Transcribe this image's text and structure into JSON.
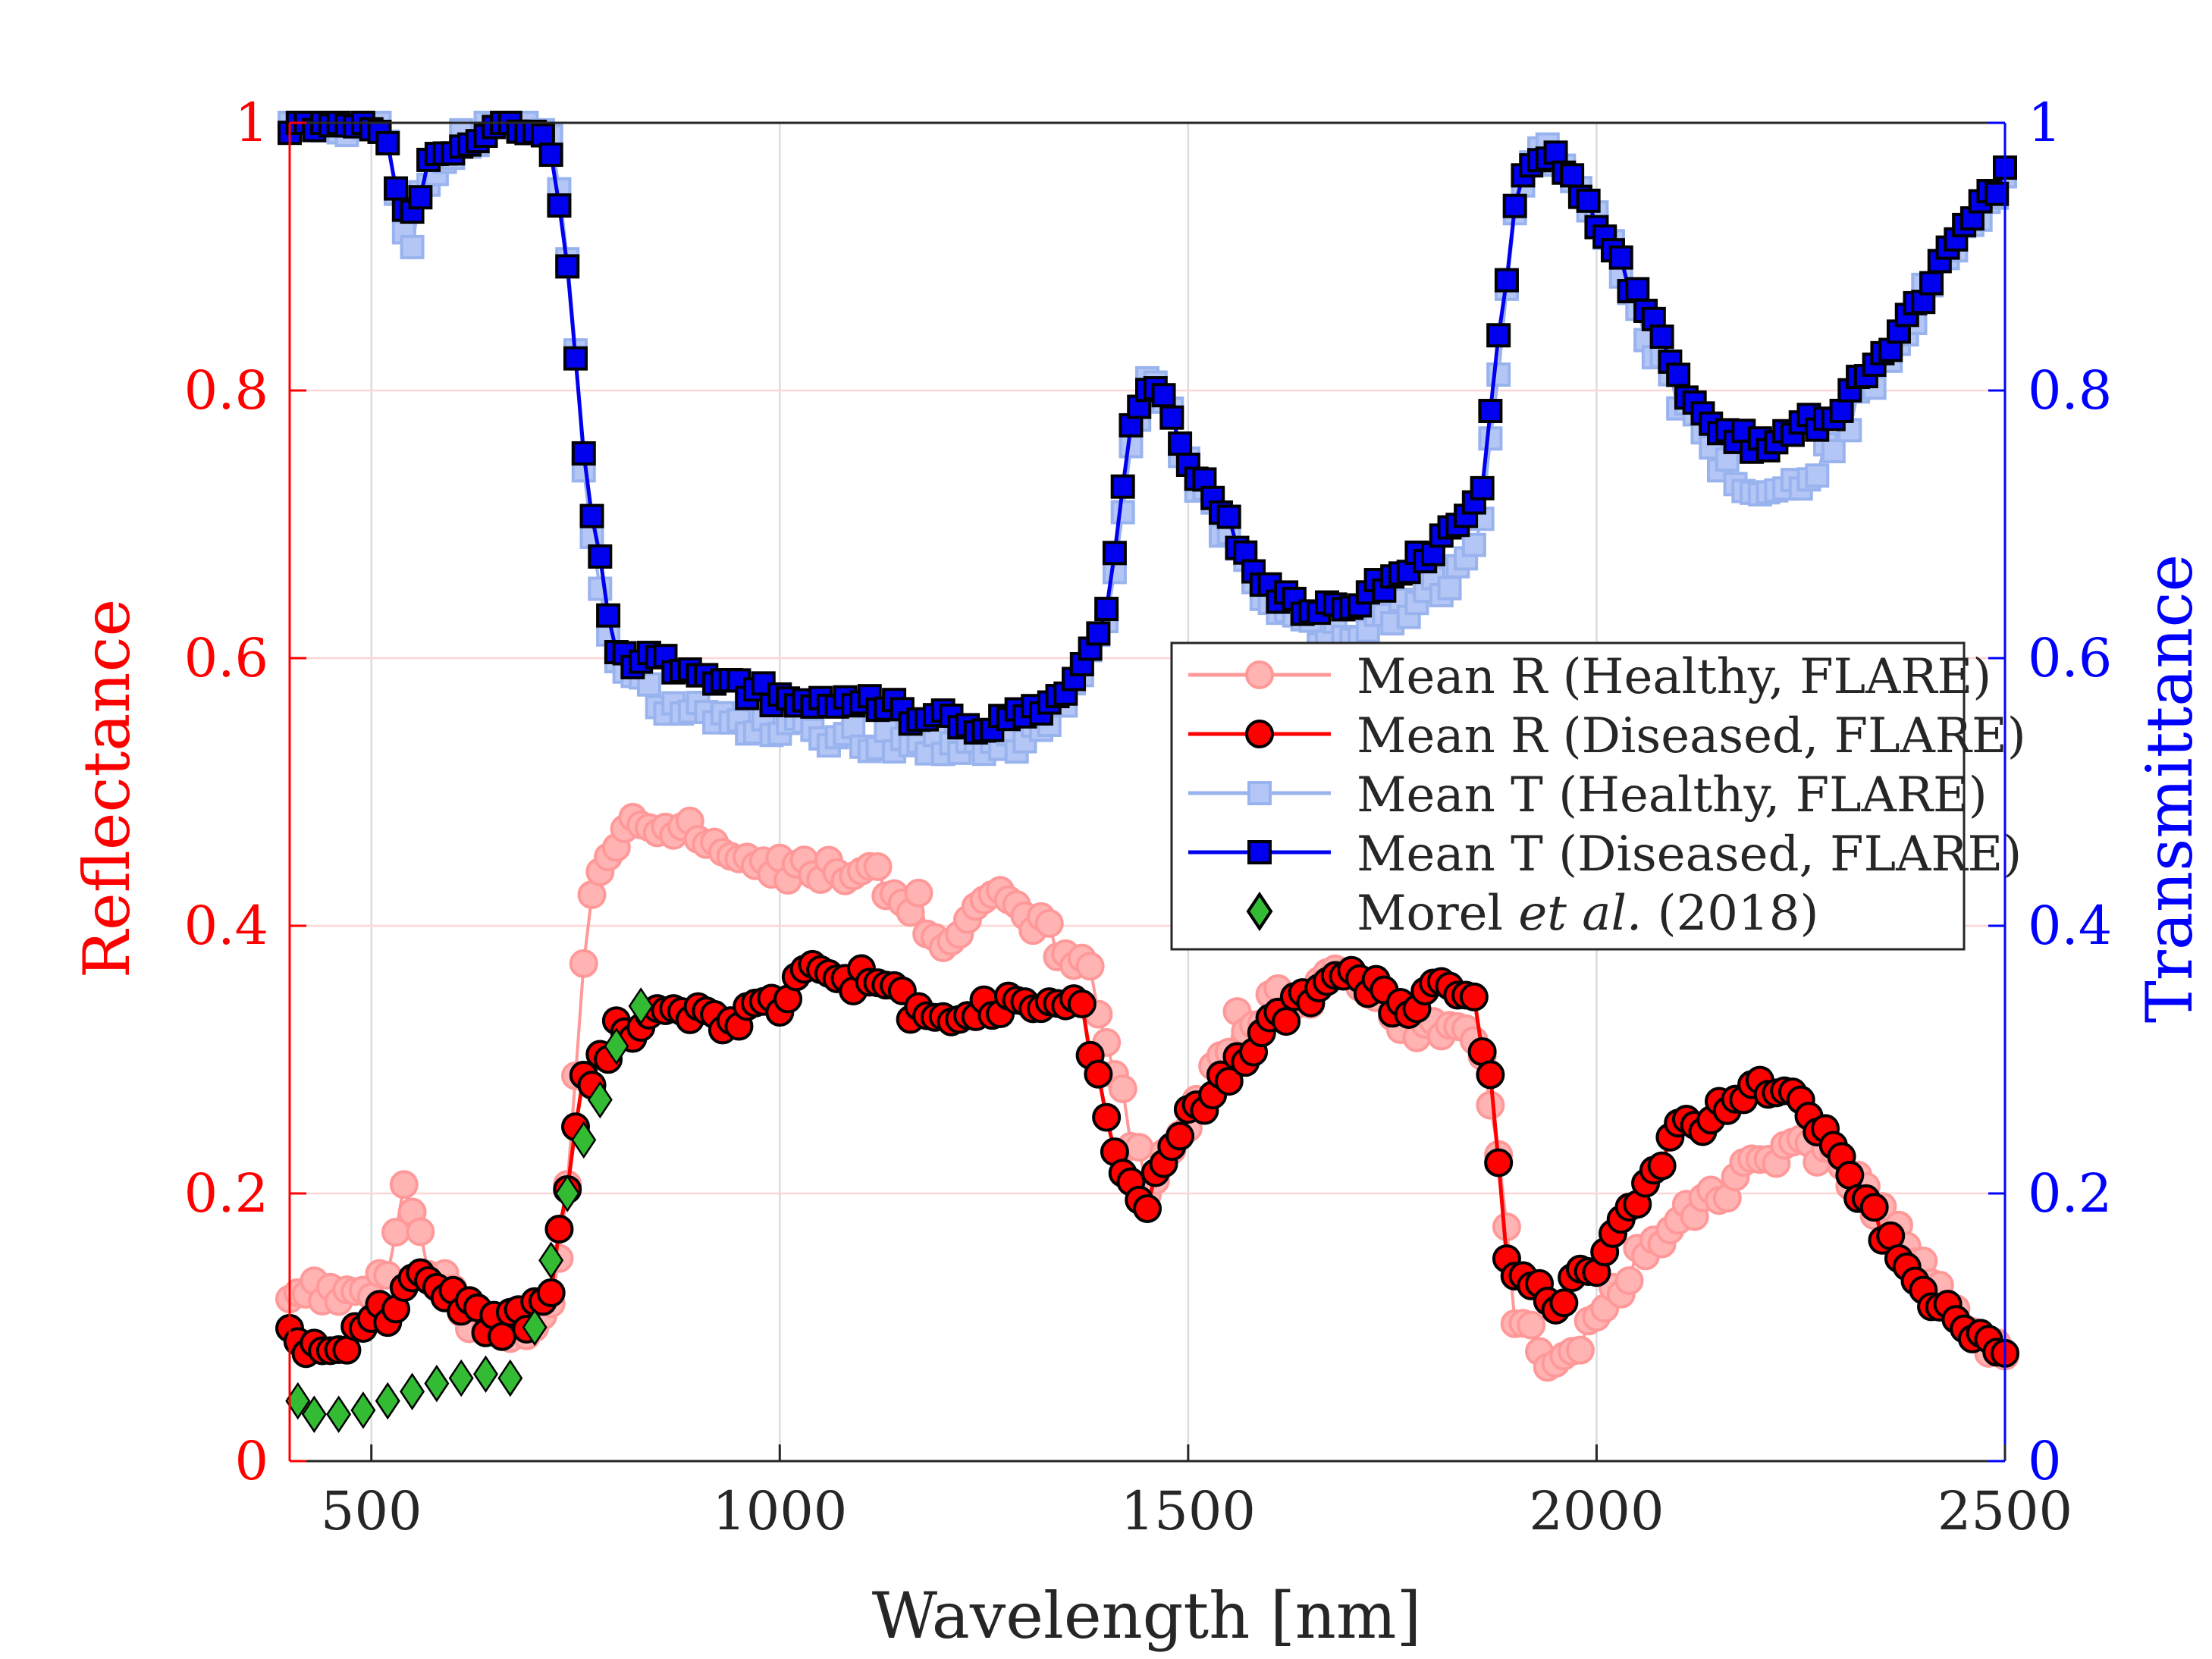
{
  "chart_data": {
    "type": "line",
    "xlabel": "Wavelength [nm]",
    "ylabel_left": "Reflectance",
    "ylabel_right": "Transmittance",
    "xlim": [
      400,
      2500
    ],
    "ylim_left": [
      0,
      1
    ],
    "ylim_right": [
      0,
      1
    ],
    "x_ticks": [
      500,
      1000,
      1500,
      2000,
      2500
    ],
    "x_tick_labels": [
      "500",
      "1000",
      "1500",
      "2000",
      "2500"
    ],
    "y_ticks": [
      0,
      0.2,
      0.4,
      0.6,
      0.8,
      1
    ],
    "y_left_tick_labels": [
      "0",
      "0.2",
      "0.4",
      "0.6",
      "0.8",
      "1"
    ],
    "y_right_tick_labels": [
      "0",
      "0.2",
      "0.4",
      "0.6",
      "0.8",
      "1"
    ],
    "grid": true,
    "legend_position": "center-right",
    "colors": {
      "left_axis": "#ff0000",
      "right_axis": "#0000ff",
      "healthy_r": "#ff9999",
      "diseased_r": "#ff0000",
      "healthy_t": "#99b3ee",
      "diseased_t": "#0000ee",
      "morel": "#33bb33"
    },
    "series": [
      {
        "name": "Mean R (Healthy, FLARE)",
        "axis": "left",
        "marker": "circle",
        "x": [
          400,
          450,
          500,
          520,
          540,
          560,
          580,
          620,
          660,
          700,
          720,
          740,
          760,
          780,
          800,
          840,
          880,
          940,
          1000,
          1100,
          1160,
          1200,
          1260,
          1320,
          1380,
          1420,
          1450,
          1500,
          1560,
          1640,
          1700,
          1760,
          1800,
          1840,
          1860,
          1880,
          1900,
          1940,
          2000,
          2050,
          2100,
          2150,
          2200,
          2250,
          2300,
          2350,
          2400,
          2450,
          2500
        ],
        "values": [
          0.13,
          0.125,
          0.12,
          0.14,
          0.21,
          0.16,
          0.14,
          0.11,
          0.1,
          0.09,
          0.11,
          0.2,
          0.38,
          0.45,
          0.47,
          0.47,
          0.48,
          0.45,
          0.44,
          0.44,
          0.42,
          0.39,
          0.43,
          0.4,
          0.36,
          0.27,
          0.2,
          0.25,
          0.33,
          0.35,
          0.36,
          0.33,
          0.32,
          0.33,
          0.31,
          0.24,
          0.11,
          0.07,
          0.1,
          0.15,
          0.18,
          0.2,
          0.23,
          0.24,
          0.22,
          0.18,
          0.15,
          0.11,
          0.08
        ]
      },
      {
        "name": "Mean R (Diseased, FLARE)",
        "axis": "left",
        "marker": "circle",
        "x": [
          400,
          450,
          500,
          520,
          550,
          580,
          620,
          660,
          700,
          720,
          740,
          760,
          780,
          800,
          840,
          880,
          940,
          1000,
          1020,
          1100,
          1160,
          1200,
          1260,
          1320,
          1370,
          1380,
          1400,
          1430,
          1450,
          1480,
          1520,
          1580,
          1640,
          1700,
          1760,
          1810,
          1850,
          1870,
          1890,
          1910,
          1950,
          2000,
          2050,
          2100,
          2150,
          2200,
          2260,
          2300,
          2350,
          2400,
          2450,
          2500
        ],
        "values": [
          0.095,
          0.08,
          0.11,
          0.11,
          0.135,
          0.13,
          0.11,
          0.1,
          0.11,
          0.13,
          0.2,
          0.28,
          0.3,
          0.32,
          0.33,
          0.34,
          0.33,
          0.34,
          0.37,
          0.36,
          0.34,
          0.33,
          0.34,
          0.34,
          0.34,
          0.3,
          0.26,
          0.2,
          0.19,
          0.24,
          0.27,
          0.31,
          0.35,
          0.36,
          0.34,
          0.35,
          0.34,
          0.28,
          0.16,
          0.13,
          0.12,
          0.15,
          0.19,
          0.25,
          0.26,
          0.28,
          0.26,
          0.22,
          0.17,
          0.13,
          0.1,
          0.08
        ]
      },
      {
        "name": "Mean T (Healthy, FLARE)",
        "axis": "right",
        "marker": "square",
        "x": [
          400,
          500,
          520,
          530,
          545,
          560,
          580,
          620,
          660,
          700,
          720,
          740,
          760,
          780,
          800,
          850,
          900,
          950,
          1000,
          1100,
          1200,
          1250,
          1300,
          1350,
          1400,
          1430,
          1450,
          1470,
          1500,
          1550,
          1600,
          1650,
          1700,
          1750,
          1800,
          1840,
          1860,
          1880,
          1900,
          1930,
          1960,
          2000,
          2050,
          2100,
          2150,
          2200,
          2250,
          2300,
          2350,
          2400,
          2450,
          2500
        ],
        "values": [
          1,
          1,
          0.99,
          0.94,
          0.9,
          0.94,
          0.97,
          0.99,
          1,
          1,
          0.99,
          0.9,
          0.74,
          0.66,
          0.59,
          0.57,
          0.56,
          0.55,
          0.55,
          0.54,
          0.535,
          0.535,
          0.54,
          0.57,
          0.63,
          0.76,
          0.81,
          0.8,
          0.74,
          0.69,
          0.64,
          0.62,
          0.62,
          0.63,
          0.65,
          0.67,
          0.71,
          0.82,
          0.93,
          0.98,
          0.97,
          0.93,
          0.86,
          0.79,
          0.75,
          0.72,
          0.73,
          0.77,
          0.82,
          0.87,
          0.92,
          0.96
        ]
      },
      {
        "name": "Mean T (Diseased, FLARE)",
        "axis": "right",
        "marker": "square",
        "x": [
          400,
          500,
          520,
          530,
          545,
          560,
          580,
          620,
          660,
          700,
          720,
          740,
          760,
          780,
          800,
          850,
          900,
          950,
          1000,
          1100,
          1200,
          1250,
          1300,
          1350,
          1400,
          1430,
          1450,
          1470,
          1500,
          1550,
          1600,
          1650,
          1700,
          1750,
          1800,
          1840,
          1860,
          1880,
          1900,
          1930,
          1960,
          2000,
          2050,
          2100,
          2150,
          2200,
          2250,
          2300,
          2350,
          2400,
          2450,
          2500
        ],
        "values": [
          1,
          1,
          0.99,
          0.95,
          0.92,
          0.95,
          0.98,
          0.99,
          1,
          1,
          0.98,
          0.9,
          0.75,
          0.67,
          0.6,
          0.6,
          0.59,
          0.58,
          0.57,
          0.565,
          0.555,
          0.55,
          0.555,
          0.57,
          0.63,
          0.77,
          0.8,
          0.8,
          0.75,
          0.7,
          0.65,
          0.63,
          0.64,
          0.66,
          0.68,
          0.7,
          0.73,
          0.84,
          0.94,
          0.98,
          0.97,
          0.93,
          0.87,
          0.81,
          0.77,
          0.76,
          0.77,
          0.79,
          0.83,
          0.87,
          0.92,
          0.96
        ]
      },
      {
        "name": "Morel et al. (2018)",
        "axis": "left",
        "marker": "diamond",
        "x": [
          410,
          430,
          460,
          490,
          520,
          550,
          580,
          610,
          640,
          670,
          700,
          720,
          740,
          760,
          780,
          800,
          830
        ],
        "values": [
          0.045,
          0.035,
          0.035,
          0.038,
          0.045,
          0.052,
          0.058,
          0.062,
          0.065,
          0.062,
          0.1,
          0.15,
          0.2,
          0.24,
          0.27,
          0.31,
          0.34
        ]
      }
    ],
    "legend": [
      {
        "label": "Mean R (Healthy, FLARE)"
      },
      {
        "label": "Mean R (Diseased, FLARE)"
      },
      {
        "label": "Mean T (Healthy, FLARE)"
      },
      {
        "label": "Mean T (Diseased, FLARE)"
      },
      {
        "label": "Morel et al. (2018)",
        "label_pre": "Morel ",
        "label_italic": "et al.",
        "label_post": " (2018)"
      }
    ]
  }
}
